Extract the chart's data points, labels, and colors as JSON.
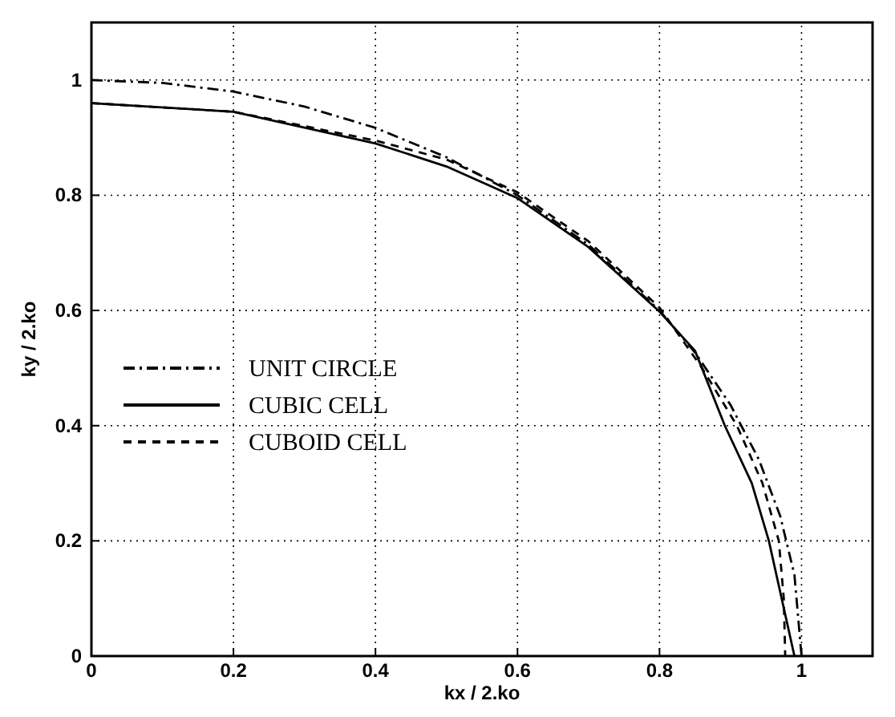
{
  "chart_data": {
    "type": "line",
    "xlabel": "kx / 2.ko",
    "ylabel": "ky / 2.ko",
    "xlim": [
      0,
      1.1
    ],
    "ylim": [
      0,
      1.1
    ],
    "xticks": [
      0,
      0.2,
      0.4,
      0.6,
      0.8,
      1
    ],
    "yticks": [
      0,
      0.2,
      0.4,
      0.6,
      0.8,
      1
    ],
    "grid": true,
    "legend": "left",
    "marker": "none",
    "series": [
      {
        "name": "UNIT CIRCLE",
        "color": "#000000",
        "line_style": "dashdot",
        "x": [
          0,
          0.1,
          0.2,
          0.3,
          0.4,
          0.5,
          0.6,
          0.7,
          0.8,
          0.85,
          0.9,
          0.94,
          0.97,
          0.99,
          1
        ],
        "values": [
          1,
          0.995,
          0.98,
          0.954,
          0.917,
          0.866,
          0.8,
          0.714,
          0.6,
          0.527,
          0.436,
          0.341,
          0.243,
          0.141,
          0
        ]
      },
      {
        "name": "CUBIC CELL",
        "color": "#000000",
        "line_style": "solid",
        "x": [
          0,
          0.2,
          0.4,
          0.5,
          0.6,
          0.7,
          0.8,
          0.85,
          0.892,
          0.93,
          0.954,
          0.972,
          0.99
        ],
        "values": [
          0.96,
          0.945,
          0.89,
          0.85,
          0.795,
          0.71,
          0.598,
          0.53,
          0.4,
          0.3,
          0.2,
          0.1,
          0
        ]
      },
      {
        "name": "CUBOID CELL",
        "color": "#000000",
        "line_style": "dashed",
        "x": [
          0,
          0.2,
          0.4,
          0.5,
          0.6,
          0.7,
          0.8,
          0.86,
          0.909,
          0.945,
          0.968,
          0.975,
          0.977
        ],
        "values": [
          0.96,
          0.945,
          0.895,
          0.862,
          0.805,
          0.72,
          0.605,
          0.5,
          0.4,
          0.3,
          0.2,
          0.1,
          0
        ]
      }
    ]
  }
}
